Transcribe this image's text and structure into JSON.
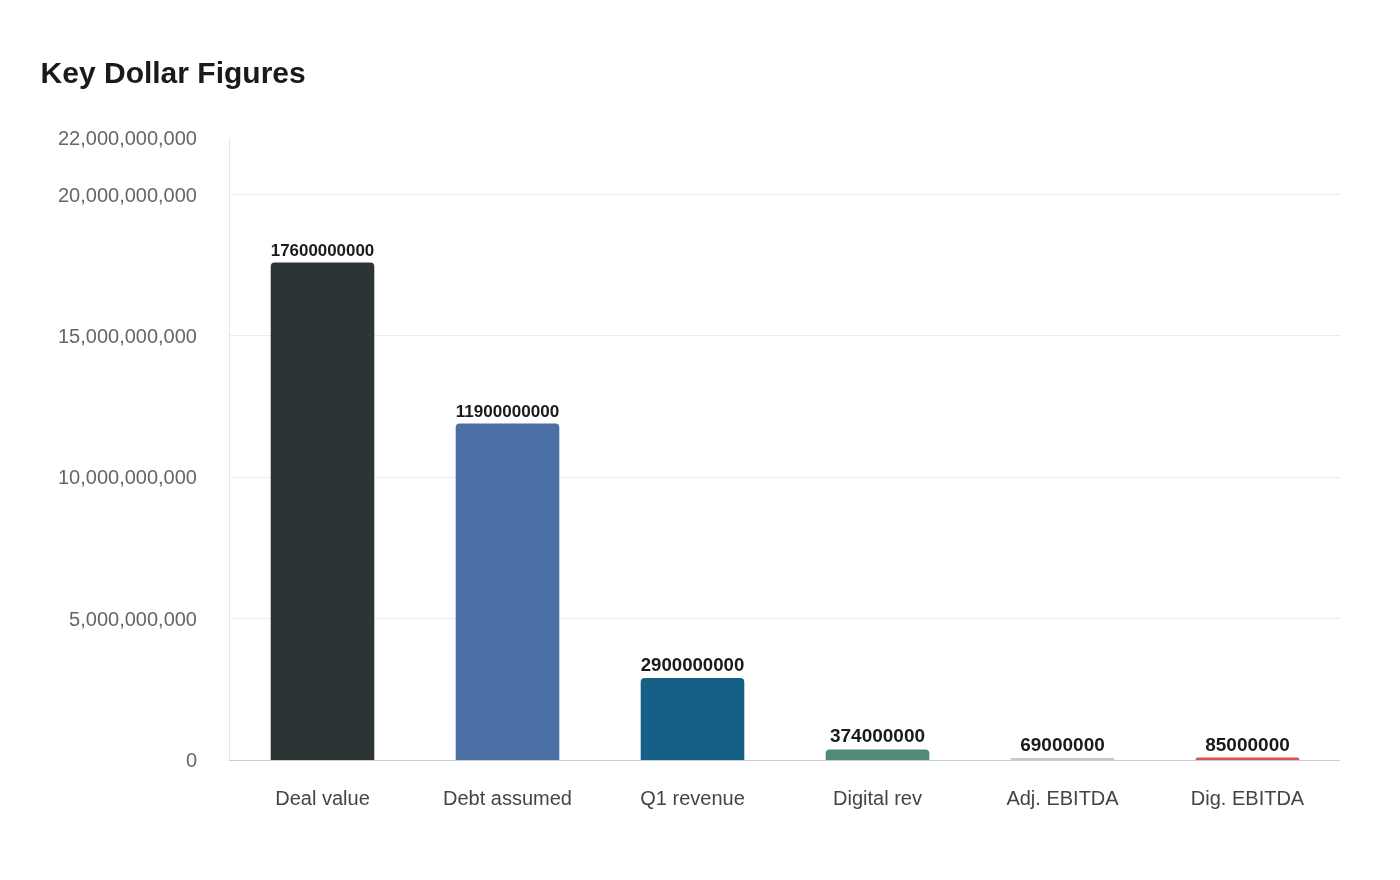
{
  "chart_data": {
    "type": "bar",
    "title": "Key Dollar Figures",
    "categories": [
      "Deal value",
      "Debt assumed",
      "Q1 revenue",
      "Digital rev",
      "Adj. EBITDA",
      "Dig. EBITDA"
    ],
    "values": [
      17600000000,
      11900000000,
      2900000000,
      374000000,
      69000000,
      85000000
    ],
    "colors": [
      "#2d3436",
      "#4a6fa5",
      "#166088",
      "#4f8a7a",
      "#c8c8c8",
      "#d9534f"
    ],
    "ylim": [
      0,
      22000000000
    ],
    "yticks": [
      {
        "value": 0,
        "label": "0"
      },
      {
        "value": 5000000000,
        "label": "5,000,000,000"
      },
      {
        "value": 10000000000,
        "label": "10,000,000,000"
      },
      {
        "value": 15000000000,
        "label": "15,000,000,000"
      },
      {
        "value": 20000000000,
        "label": "20,000,000,000"
      },
      {
        "value": 22000000000,
        "label": "22,000,000,000"
      }
    ],
    "data_labels": true,
    "grid": "y",
    "legend": false
  }
}
